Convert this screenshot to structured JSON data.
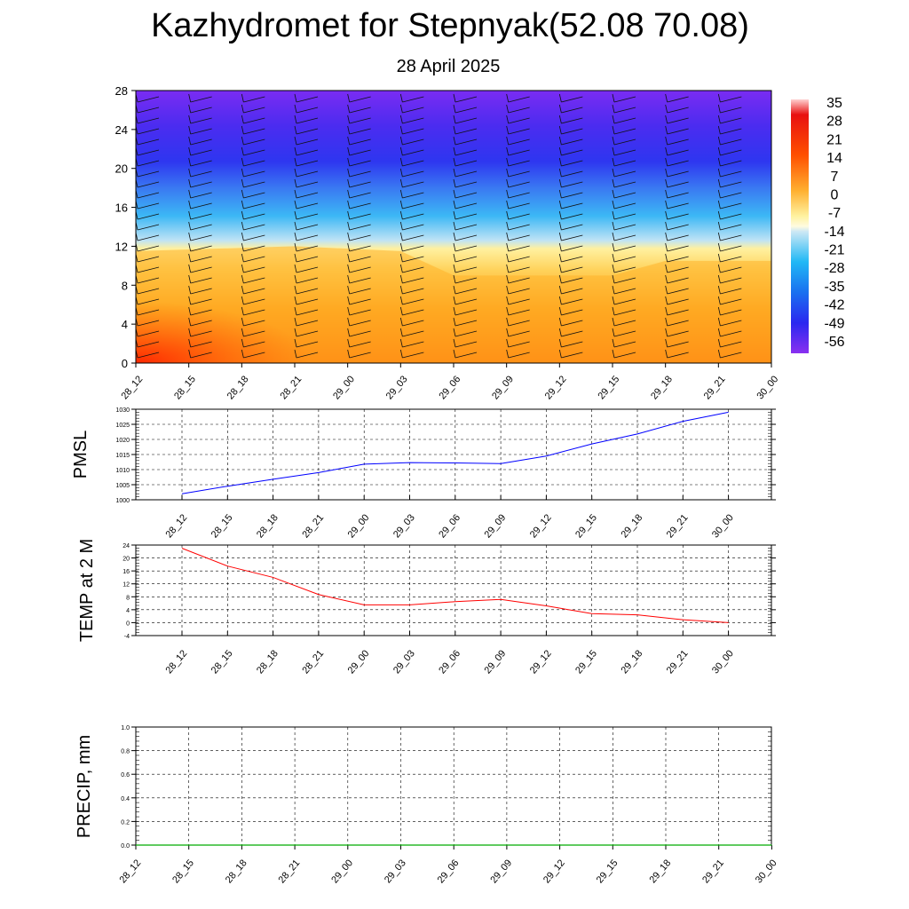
{
  "header": {
    "title": "Kazhydromet for Stepnyak(52.08 70.08)",
    "date": "28 April 2025"
  },
  "chart_data": [
    {
      "type": "heatmap",
      "title": "",
      "xlabel": "",
      "ylabel": "",
      "x_ticks": [
        "28_12",
        "28_15",
        "28_18",
        "28_21",
        "29_00",
        "29_03",
        "29_06",
        "29_09",
        "29_12",
        "29_15",
        "29_18",
        "29_21",
        "30_00"
      ],
      "y_ticks": [
        "0",
        "4",
        "8",
        "12",
        "16",
        "20",
        "24",
        "28"
      ],
      "ylim": [
        0,
        28
      ],
      "colorbar_labels": [
        "35",
        "28",
        "21",
        "14",
        "7",
        "0",
        "-7",
        "-14",
        "-21",
        "-28",
        "-35",
        "-42",
        "-49",
        "-56"
      ],
      "colormap_colors": [
        "#ff1a1a",
        "#ff5a00",
        "#ff9f10",
        "#ffd060",
        "#fff6a0",
        "#c8e6f5",
        "#35c0f5",
        "#1a78f0",
        "#2e2cf0",
        "#7b2cf0"
      ],
      "freezing_level": [
        {
          "x": "28_12",
          "y": 11.5
        },
        {
          "x": "28_21",
          "y": 12.0
        },
        {
          "x": "29_03",
          "y": 11.5
        },
        {
          "x": "29_06",
          "y": 9.0
        },
        {
          "x": "29_15",
          "y": 9.0
        },
        {
          "x": "29_18",
          "y": 10.5
        },
        {
          "x": "30_00",
          "y": 10.5
        }
      ],
      "wind_barbs": "present"
    },
    {
      "type": "line",
      "ylabel": "PMSL",
      "ylim": [
        1000,
        1030
      ],
      "y_ticks": [
        "1000",
        "1005",
        "1010",
        "1015",
        "1020",
        "1025",
        "1030"
      ],
      "categories": [
        "28_12",
        "28_15",
        "28_18",
        "28_21",
        "29_00",
        "29_03",
        "29_06",
        "29_09",
        "29_12",
        "29_15",
        "29_18",
        "29_21",
        "30_00"
      ],
      "series": [
        {
          "values": [
            1002,
            1004.5,
            1006.8,
            1009,
            1011.8,
            1012.3,
            1012.2,
            1012,
            1014.5,
            1018.5,
            1021.8,
            1026,
            1029
          ],
          "color": "#0000ff"
        }
      ]
    },
    {
      "type": "line",
      "ylabel": "TEMP at 2 M",
      "ylim": [
        -4,
        24
      ],
      "y_ticks": [
        "-4",
        "0",
        "4",
        "8",
        "12",
        "16",
        "20",
        "24"
      ],
      "categories": [
        "28_12",
        "28_15",
        "28_18",
        "28_21",
        "29_00",
        "29_03",
        "29_06",
        "29_09",
        "29_12",
        "29_15",
        "29_18",
        "29_21",
        "30_00"
      ],
      "series": [
        {
          "values": [
            23,
            17.5,
            14,
            8.7,
            5.5,
            5.5,
            6.5,
            7.2,
            5.2,
            2.8,
            2.4,
            0.9,
            0
          ],
          "color": "#ff0000"
        }
      ]
    },
    {
      "type": "line",
      "ylabel": "PRECIP, mm",
      "ylim": [
        0,
        1
      ],
      "y_ticks": [
        "0.0",
        "0.2",
        "0.4",
        "0.6",
        "0.8",
        "1.0"
      ],
      "categories": [
        "28_12",
        "28_15",
        "28_18",
        "28_21",
        "29_00",
        "29_03",
        "29_06",
        "29_09",
        "29_12",
        "29_15",
        "29_18",
        "29_21",
        "30_00"
      ],
      "series": [
        {
          "values": [
            0,
            0,
            0,
            0,
            0,
            0,
            0,
            0,
            0,
            0,
            0,
            0,
            0
          ],
          "color": "#00aa00"
        }
      ]
    }
  ]
}
